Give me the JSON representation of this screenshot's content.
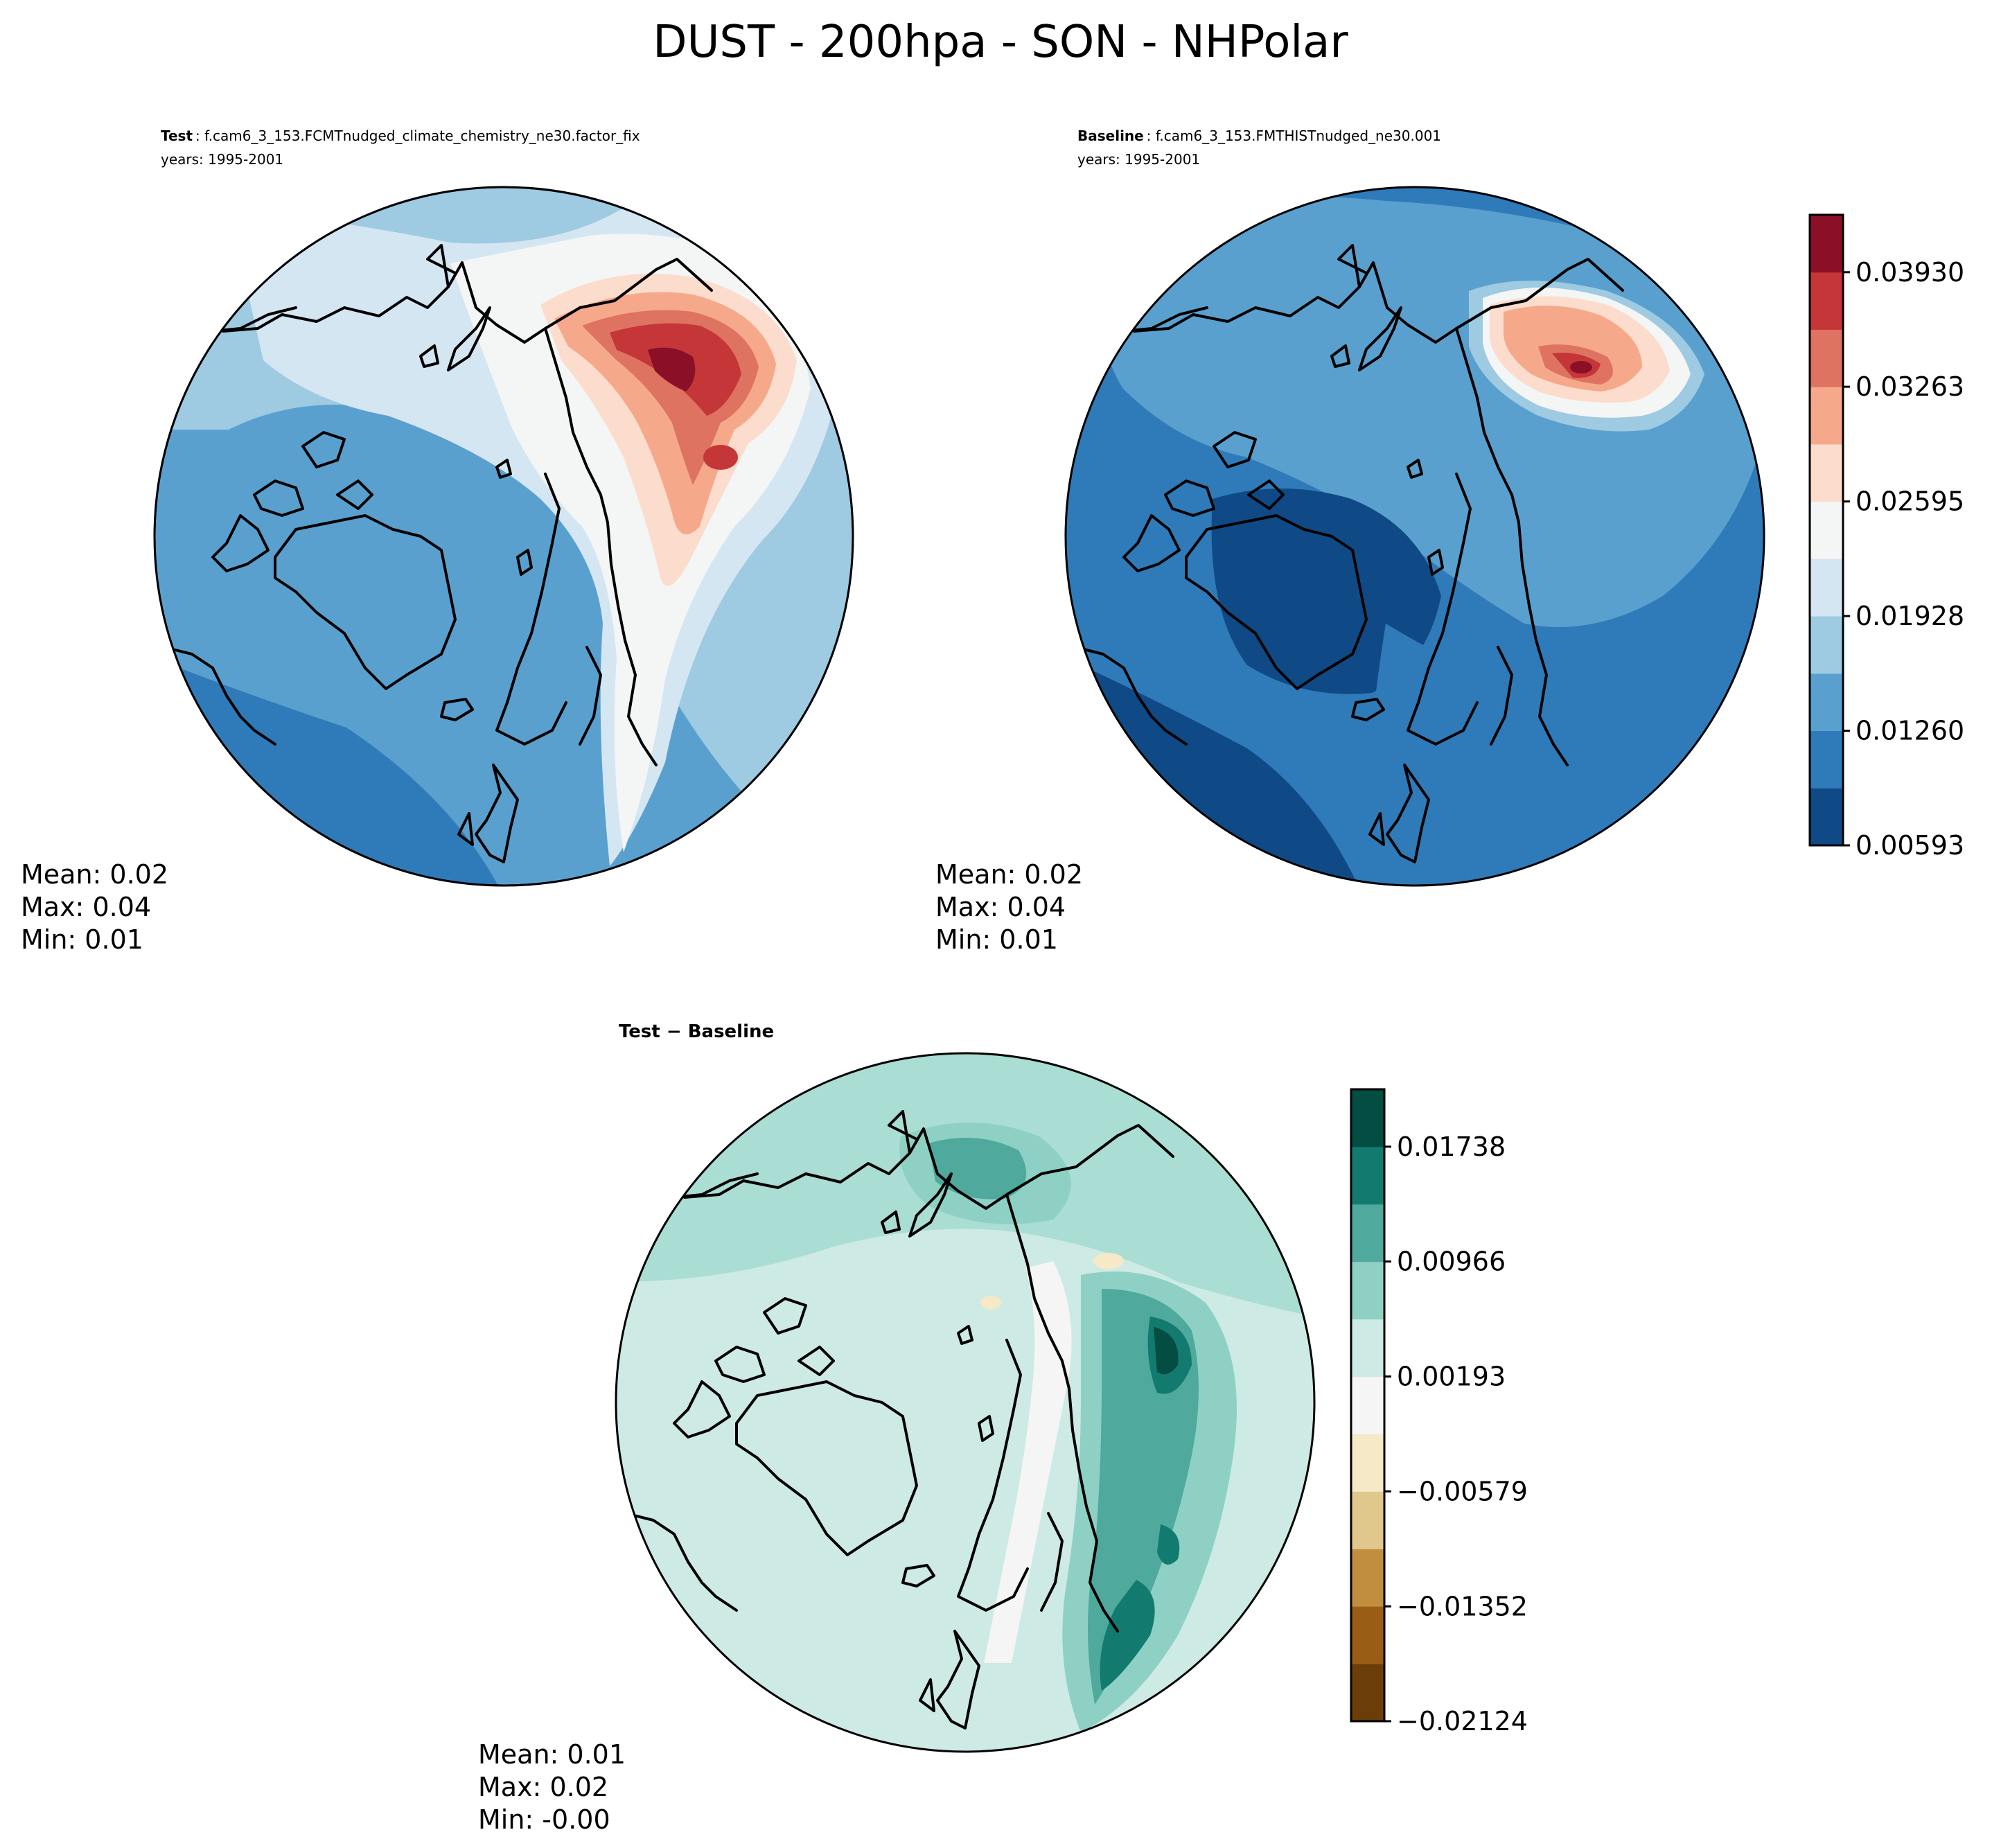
{
  "figure": {
    "title": "DUST - 200hpa - SON - NHPolar"
  },
  "chart_data": [
    {
      "type": "polar-contour-map",
      "panel": "test",
      "projection": "NH Polar Stereographic",
      "label_bold": "Test",
      "case_name": ": f.cam6_3_153.FCMTnudged_climate_chemistry_ne30.factor_fix",
      "years": "years: 1995-2001",
      "stats": {
        "mean": "Mean:  0.02",
        "max": "Max:  0.04",
        "min": "Min:  0.01"
      },
      "colorbar": "shared-absolute"
    },
    {
      "type": "polar-contour-map",
      "panel": "baseline",
      "projection": "NH Polar Stereographic",
      "label_bold": "Baseline",
      "case_name": ": f.cam6_3_153.FMTHISTnudged_ne30.001",
      "years": "years: 1995-2001",
      "stats": {
        "mean": "Mean:  0.02",
        "max": "Max:  0.04",
        "min": "Min:  0.01"
      },
      "colorbar": "shared-absolute"
    },
    {
      "type": "polar-contour-map",
      "panel": "difference",
      "projection": "NH Polar Stereographic",
      "label": "Test − Baseline",
      "stats": {
        "mean": "Mean:  0.01",
        "max": "Max:  0.02",
        "min": "Min: -0.00"
      },
      "colorbar": "difference"
    }
  ],
  "colorbars": {
    "absolute": {
      "range": [
        0.00593,
        0.04264
      ],
      "tick_values": [
        0.00593,
        0.0126,
        0.01928,
        0.02595,
        0.03263,
        0.0393
      ],
      "tick_labels": [
        "0.00593",
        "0.01260",
        "0.01928",
        "0.02595",
        "0.03263",
        "0.03930"
      ],
      "colors": [
        "#104a86",
        "#2f7bba",
        "#5aa0cf",
        "#9ecae2",
        "#d4e6f2",
        "#f4f5f5",
        "#fcdccc",
        "#f5a98a",
        "#de7362",
        "#c43638",
        "#8b0f26"
      ]
    },
    "difference": {
      "range": [
        -0.02124,
        0.02124
      ],
      "tick_values": [
        -0.02124,
        -0.01352,
        -0.00579,
        0.00193,
        0.00966,
        0.01738
      ],
      "tick_labels": [
        "−0.02124",
        "−0.01352",
        "−0.00579",
        "0.00193",
        "0.00966",
        "0.01738"
      ],
      "colors": [
        "#6b3d08",
        "#995d15",
        "#c18d3f",
        "#e0c88d",
        "#f5e9c8",
        "#f4f5f4",
        "#cdeae5",
        "#8ed1c4",
        "#4fa99d",
        "#137a6f",
        "#034d42"
      ]
    }
  },
  "colors": {
    "abs_background": "#5aa0cf",
    "diff_background": "#cdeae5",
    "coastline": "#000000"
  }
}
